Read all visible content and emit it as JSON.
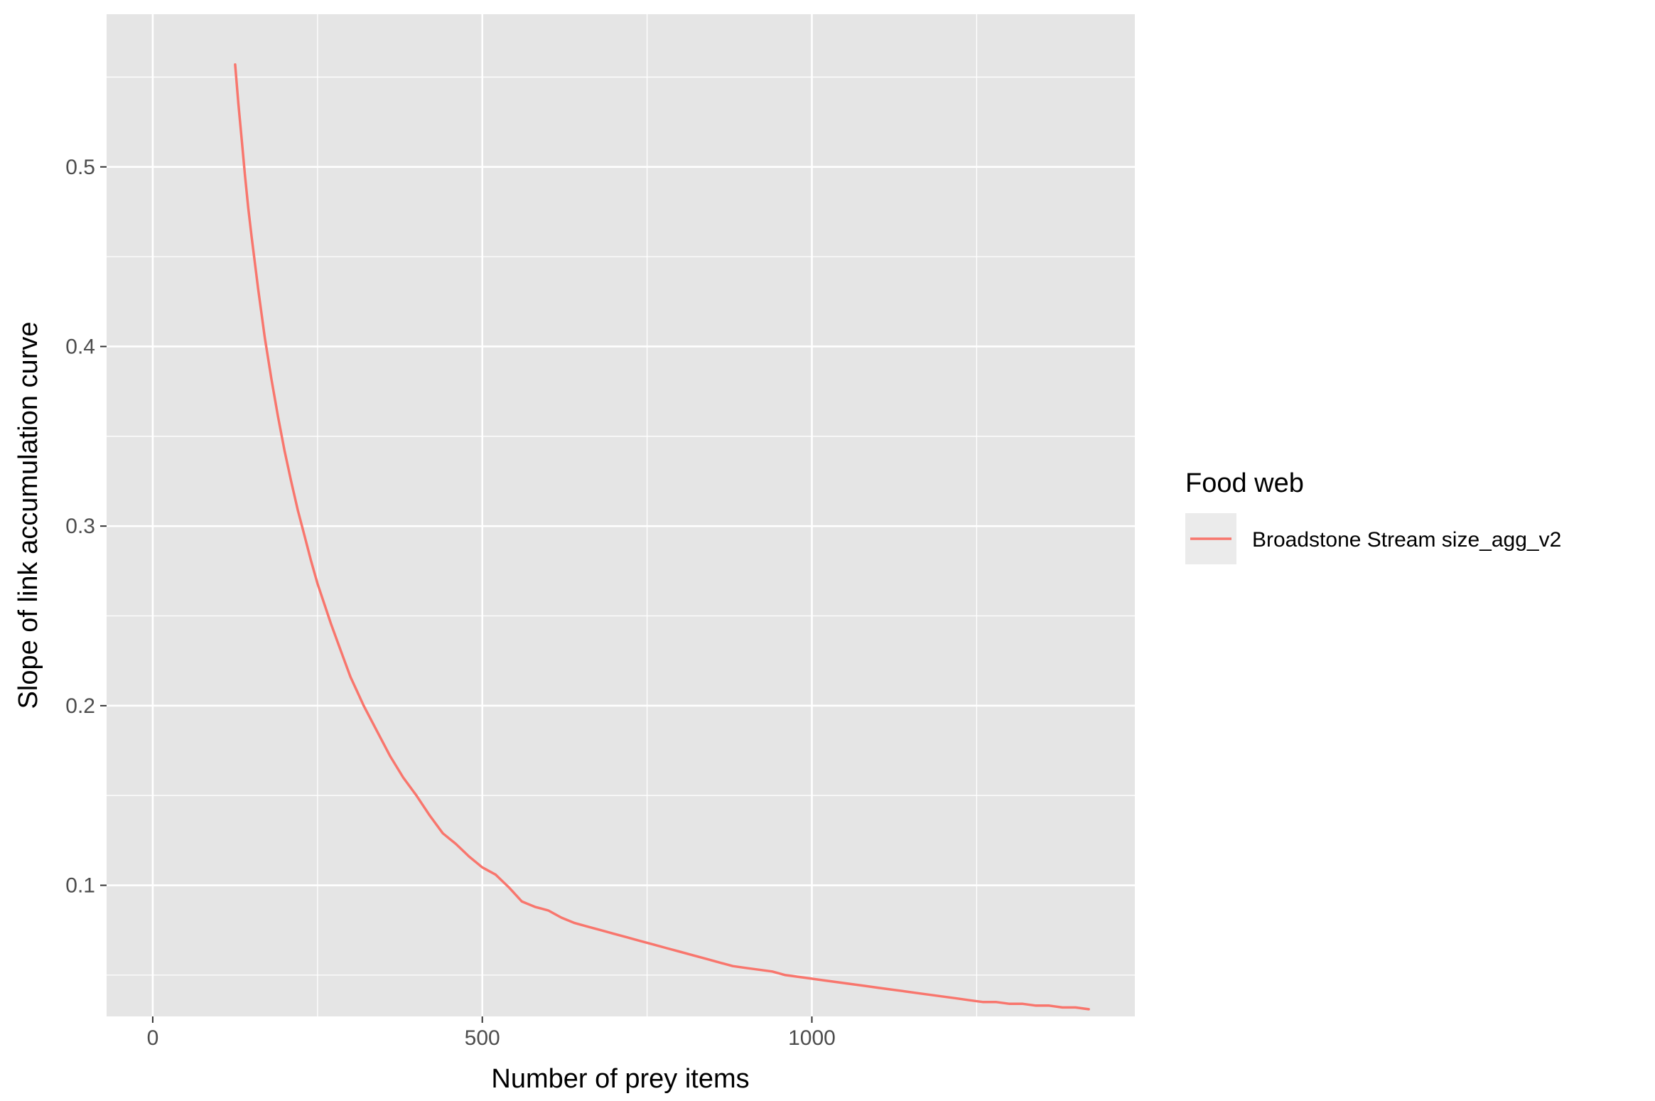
{
  "chart_data": {
    "type": "line",
    "xlabel": "Number of prey items",
    "ylabel": "Slope of link accumulation curve",
    "xlim": [
      -70,
      1490
    ],
    "ylim": [
      0.027,
      0.585
    ],
    "x_ticks": [
      0,
      500,
      1000
    ],
    "x_tick_labels": [
      "0",
      "500",
      "1000"
    ],
    "y_ticks": [
      0.1,
      0.2,
      0.3,
      0.4,
      0.5
    ],
    "y_tick_labels": [
      "0.1",
      "0.2",
      "0.3",
      "0.4",
      "0.5"
    ],
    "grid": true,
    "legend": {
      "title": "Food web",
      "position": "right"
    },
    "series": [
      {
        "name": "Broadstone Stream size_agg_v2",
        "color": "#f8766d",
        "x": [
          125,
          130,
          135,
          140,
          145,
          150,
          160,
          170,
          180,
          190,
          200,
          210,
          220,
          230,
          240,
          250,
          260,
          270,
          280,
          290,
          300,
          320,
          340,
          360,
          380,
          400,
          420,
          440,
          460,
          480,
          500,
          520,
          540,
          560,
          580,
          600,
          620,
          640,
          660,
          680,
          700,
          720,
          740,
          760,
          780,
          800,
          820,
          840,
          860,
          880,
          900,
          920,
          940,
          960,
          980,
          1000,
          1020,
          1040,
          1060,
          1080,
          1100,
          1120,
          1140,
          1160,
          1180,
          1200,
          1220,
          1240,
          1260,
          1280,
          1300,
          1320,
          1340,
          1360,
          1380,
          1400,
          1420
        ],
        "values": [
          0.557,
          0.535,
          0.515,
          0.495,
          0.477,
          0.461,
          0.432,
          0.405,
          0.382,
          0.361,
          0.342,
          0.325,
          0.309,
          0.295,
          0.281,
          0.268,
          0.257,
          0.246,
          0.236,
          0.226,
          0.216,
          0.2,
          0.186,
          0.172,
          0.16,
          0.15,
          0.139,
          0.129,
          0.123,
          0.116,
          0.11,
          0.106,
          0.099,
          0.091,
          0.088,
          0.086,
          0.082,
          0.079,
          0.077,
          0.075,
          0.073,
          0.071,
          0.069,
          0.067,
          0.065,
          0.063,
          0.061,
          0.059,
          0.057,
          0.055,
          0.054,
          0.053,
          0.052,
          0.05,
          0.049,
          0.048,
          0.047,
          0.046,
          0.045,
          0.044,
          0.043,
          0.042,
          0.041,
          0.04,
          0.039,
          0.038,
          0.037,
          0.036,
          0.035,
          0.035,
          0.034,
          0.034,
          0.033,
          0.033,
          0.032,
          0.032,
          0.031
        ]
      }
    ]
  }
}
